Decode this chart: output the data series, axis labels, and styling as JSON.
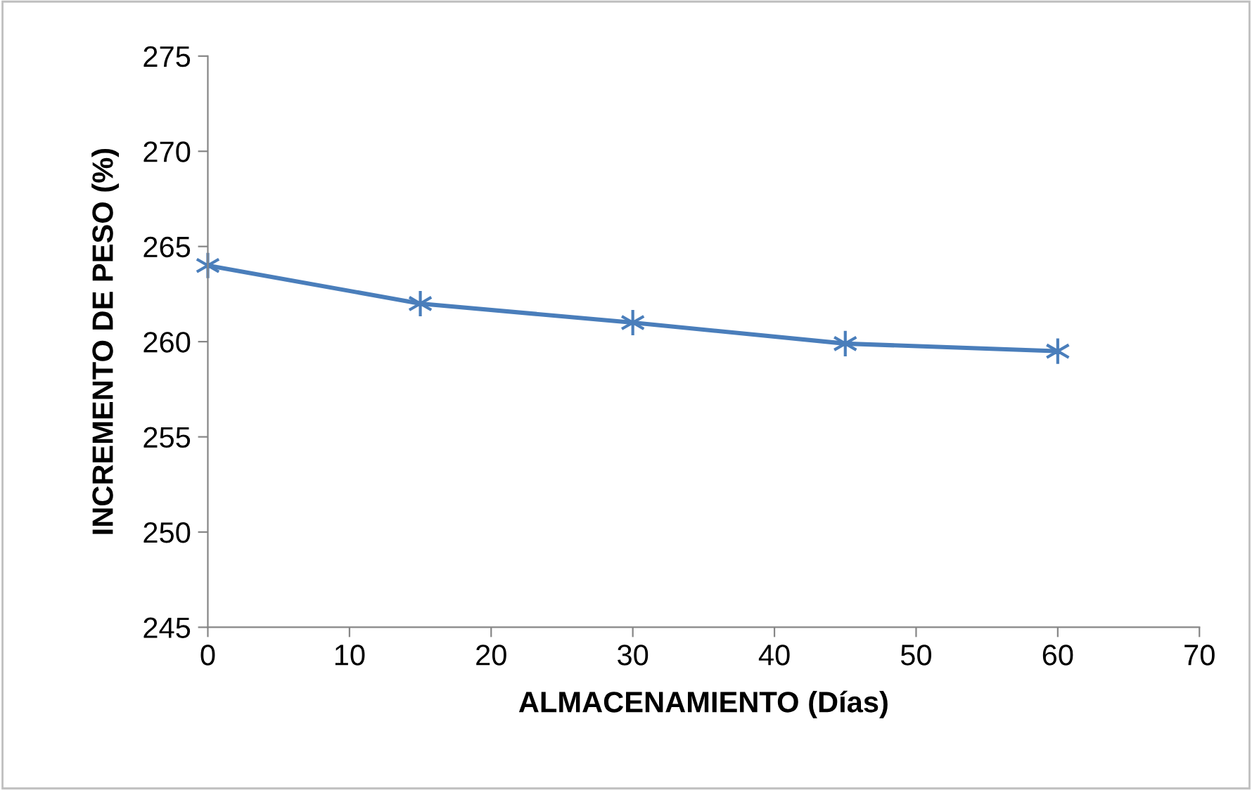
{
  "chart_data": {
    "type": "line",
    "xlabel": "ALMACENAMIENTO (Días)",
    "ylabel": "INCREMENTO DE PESO (%)",
    "x": [
      0,
      15,
      30,
      45,
      60
    ],
    "series": [
      {
        "color": "#4a7ebb",
        "values": [
          264,
          262,
          261,
          259.9,
          259.5
        ]
      }
    ],
    "xlim": [
      0,
      70
    ],
    "xticks": [
      0,
      10,
      20,
      30,
      40,
      50,
      60,
      70
    ],
    "ylim": [
      245,
      275
    ],
    "yticks": [
      245,
      250,
      255,
      260,
      265,
      270,
      275
    ],
    "marker": "cross",
    "line_style": "solid",
    "grid": false,
    "legend": false
  }
}
